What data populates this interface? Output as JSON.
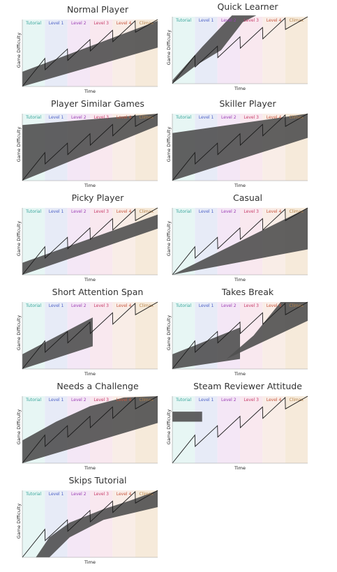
{
  "stages": [
    {
      "label": "Tutorial",
      "bg": "#e6f5f3",
      "fg": "#3aa79d"
    },
    {
      "label": "Level 1",
      "bg": "#e6eaf7",
      "fg": "#4f63c7"
    },
    {
      "label": "Level 2",
      "bg": "#f3e6f6",
      "fg": "#9c3fb5"
    },
    {
      "label": "Level 3",
      "bg": "#f9e7ee",
      "fg": "#c73d6a"
    },
    {
      "label": "Level 4",
      "bg": "#f9ece6",
      "fg": "#c7563d"
    },
    {
      "label": "Climax",
      "bg": "#f6e9d8",
      "fg": "#b8844a"
    }
  ],
  "axes": {
    "x": "Time",
    "y": "Game Difficulty"
  },
  "band_color": "#505050",
  "panels": [
    {
      "title": "Normal Player",
      "band": "normal"
    },
    {
      "title": "Quick Learner",
      "band": "quick"
    },
    {
      "title": "Player Similar Games",
      "band": "similar"
    },
    {
      "title": "Skiller Player",
      "band": "skiller"
    },
    {
      "title": "Picky Player",
      "band": "picky"
    },
    {
      "title": "Casual",
      "band": "casual"
    },
    {
      "title": "Short Attention Span",
      "band": "short"
    },
    {
      "title": "Takes Break",
      "band": "takes"
    },
    {
      "title": "Needs a Challenge",
      "band": "challenge"
    },
    {
      "title": "Steam Reviewer Attitude",
      "band": "steam"
    },
    {
      "title": "Skips Tutorial",
      "band": "skips"
    }
  ]
}
